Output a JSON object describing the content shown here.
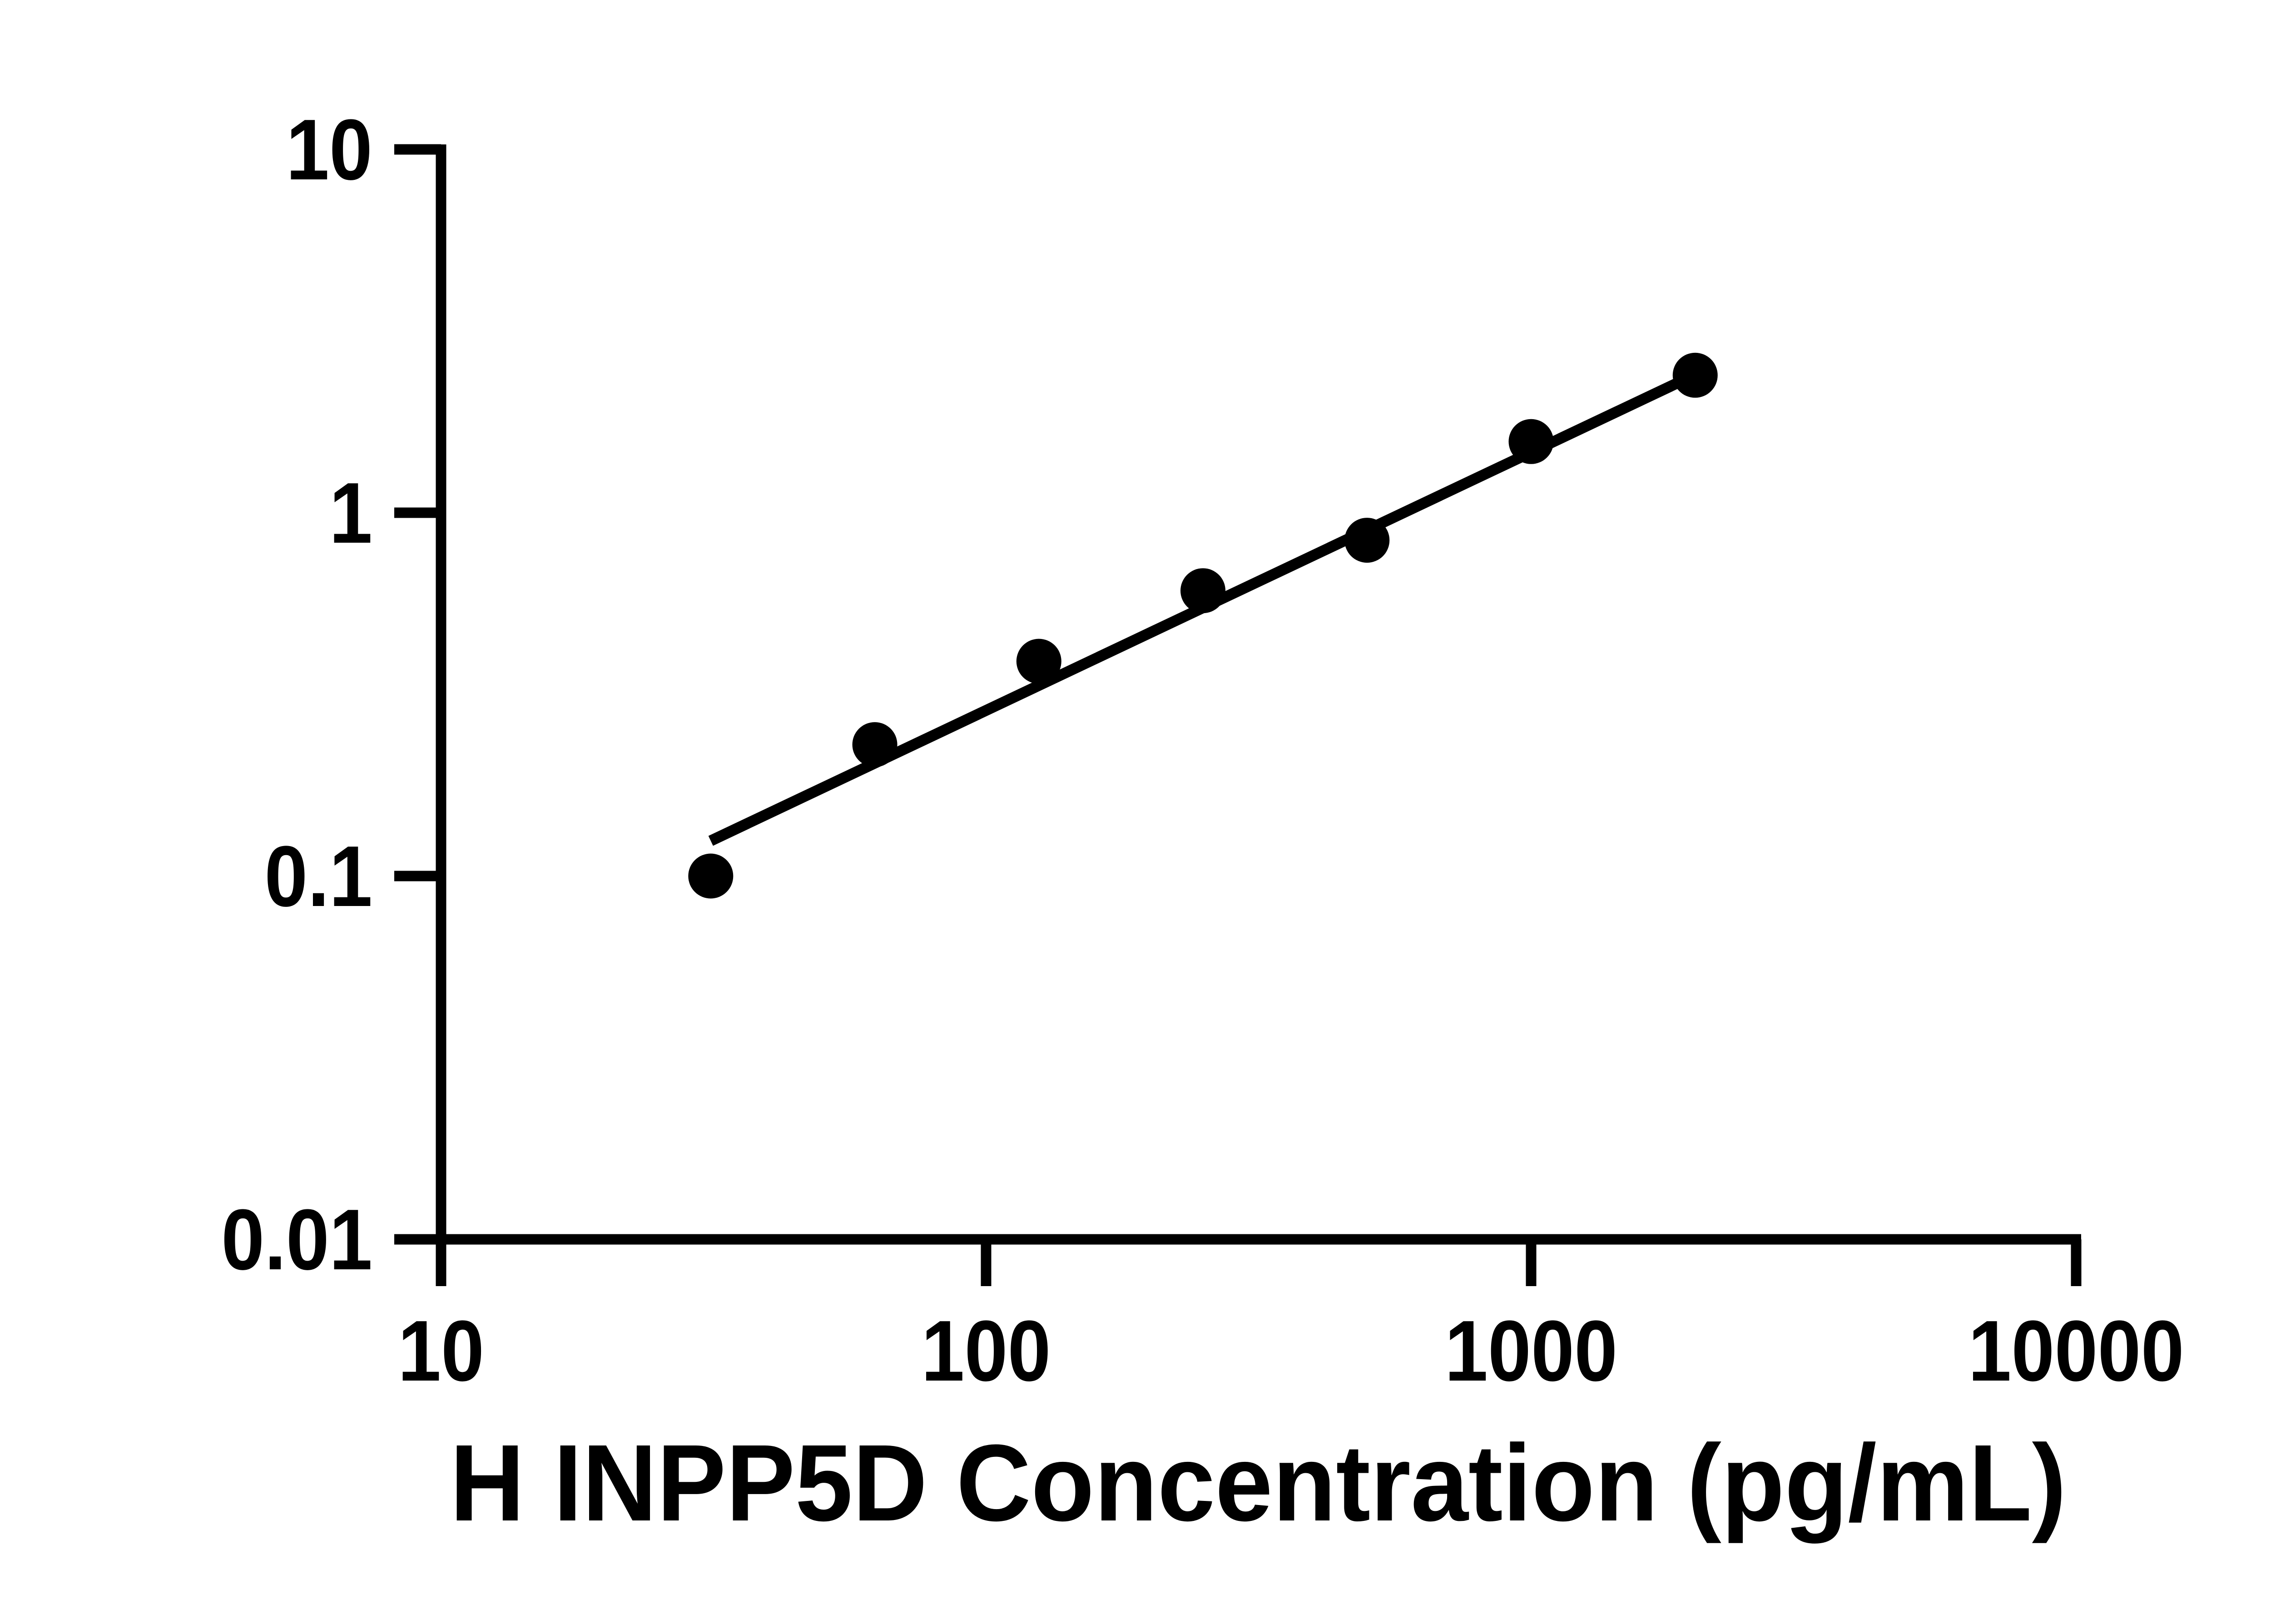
{
  "chart_data": {
    "type": "scatter",
    "title": "",
    "xlabel": "H INPP5D Concentration (pg/mL)",
    "ylabel": "",
    "x_scale": "log",
    "y_scale": "log",
    "xlim": [
      10,
      10000
    ],
    "ylim": [
      0.01,
      10
    ],
    "grid": false,
    "legend_position": "none",
    "x_ticks": {
      "values": [
        10,
        100,
        1000,
        10000
      ],
      "labels": [
        "10",
        "100",
        "1000",
        "10000"
      ]
    },
    "y_ticks": {
      "values": [
        0.01,
        0.1,
        1,
        10
      ],
      "labels": [
        "0.01",
        "0.1",
        "1",
        "10"
      ]
    },
    "series": [
      {
        "name": "standard-curve-points",
        "type": "scatter",
        "marker": "filled-circle",
        "color": "#000000",
        "x": [
          31.25,
          62.5,
          125,
          250,
          500,
          1000,
          2000
        ],
        "y": [
          0.1,
          0.23,
          0.39,
          0.61,
          0.84,
          1.57,
          2.39
        ]
      },
      {
        "name": "fit-line",
        "type": "line",
        "color": "#000000",
        "x": [
          31.25,
          2000
        ],
        "y": [
          0.125,
          2.4
        ]
      }
    ],
    "colors": {
      "background": "#ffffff",
      "foreground": "#000000"
    }
  }
}
